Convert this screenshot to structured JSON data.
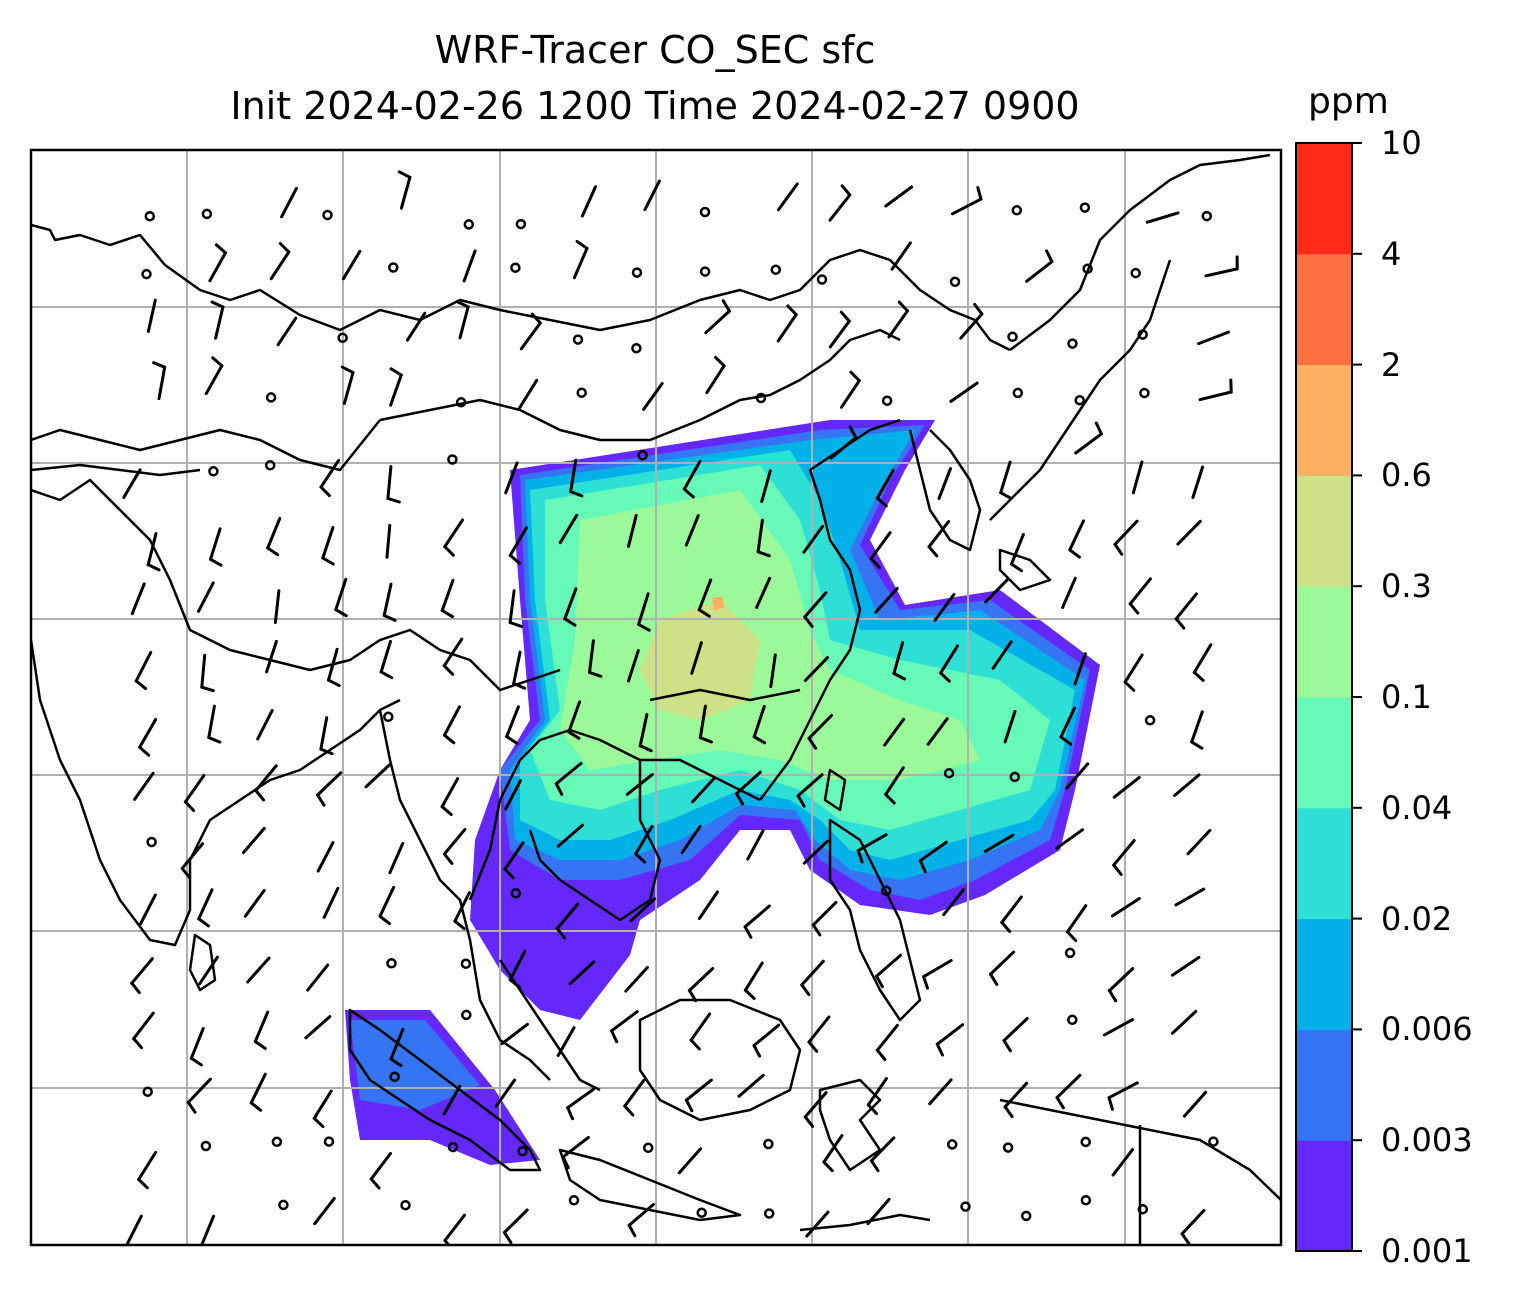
{
  "title": {
    "line1": "WRF-Tracer CO_SEC sfc",
    "line2": "Init 2024-02-26 1200 Time 2024-02-27 0900"
  },
  "colorbar": {
    "unit": "ppm",
    "levels": [
      "0.001",
      "0.003",
      "0.006",
      "0.02",
      "0.04",
      "0.1",
      "0.3",
      "0.6",
      "2",
      "4",
      "10"
    ],
    "colors": [
      "#6428fa",
      "#3574f2",
      "#04b0e8",
      "#2edfd6",
      "#66f9b8",
      "#9cf99a",
      "#cfe188",
      "#fdb062",
      "#ff7040",
      "#ff2a18"
    ]
  },
  "map": {
    "gridlines": true,
    "coastlines": true,
    "wind_barbs": true,
    "field": "CO_SEC tracer concentration"
  }
}
